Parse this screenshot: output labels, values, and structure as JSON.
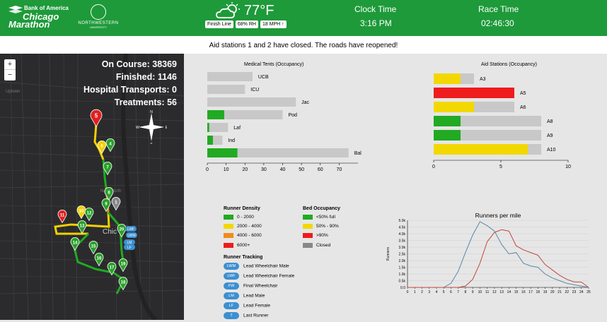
{
  "header": {
    "sponsor_line1": "Bank of America",
    "sponsor_line2": "Chicago",
    "sponsor_line3": "Marathon",
    "partner_line1": "NORTHWESTERN",
    "partner_line2": "UNIVERSITY",
    "temperature": "77°F",
    "weather_icon": "partly-cloudy-icon",
    "badges": [
      "Finish Line",
      "68% RH",
      "18 MPH ↑"
    ],
    "clock_label": "Clock Time",
    "clock_value": "3:16 PM",
    "race_label": "Race Time",
    "race_value": "02:46:30",
    "brand_color": "#1e9a3a"
  },
  "banner": "Aid stations 1 and 2 have closed. The roads have reopened!",
  "map": {
    "zoom_in": "+",
    "zoom_out": "−",
    "stats": [
      "On Course: 38369",
      "Finished: 1146",
      "Hospital Transports: 0",
      "Treatments: 56"
    ],
    "compass": {
      "n": "N",
      "s": "S",
      "e": "E",
      "w": "W"
    },
    "city_label": "Chic",
    "markers": [
      {
        "label": "5",
        "color": "#e02020"
      },
      {
        "label": "6",
        "color": "#f2d000"
      },
      {
        "label": "4",
        "color": "#2aa02a"
      },
      {
        "label": "7",
        "color": "#2aa02a"
      },
      {
        "label": "8",
        "color": "#2aa02a"
      },
      {
        "label": "1",
        "color": "#888888"
      },
      {
        "label": "9",
        "color": "#2aa02a"
      },
      {
        "label": "10",
        "color": "#f2d000"
      },
      {
        "label": "11",
        "color": "#e02020"
      },
      {
        "label": "12",
        "color": "#2aa02a"
      },
      {
        "label": "13",
        "color": "#2aa02a"
      },
      {
        "label": "14",
        "color": "#2aa02a"
      },
      {
        "label": "15",
        "color": "#2aa02a"
      },
      {
        "label": "16",
        "color": "#2aa02a"
      },
      {
        "label": "17",
        "color": "#2aa02a"
      },
      {
        "label": "18",
        "color": "#2aa02a"
      },
      {
        "label": "19",
        "color": "#2aa02a"
      },
      {
        "label": "20",
        "color": "#2aa02a"
      }
    ],
    "runners": [
      "LWF",
      "LWM",
      "LM",
      "LF"
    ]
  },
  "medical": {
    "title": "Medical Tents (Occupancy)",
    "rows": [
      {
        "name": "UCB",
        "value": 0,
        "capacity": 24
      },
      {
        "name": "ICU",
        "value": 0,
        "capacity": 20
      },
      {
        "name": "Jac",
        "value": 0,
        "capacity": 47
      },
      {
        "name": "Pod",
        "value": 9,
        "capacity": 40
      },
      {
        "name": "Laf",
        "value": 1,
        "capacity": 11
      },
      {
        "name": "Ind",
        "value": 3,
        "capacity": 8
      },
      {
        "name": "Bal",
        "value": 16,
        "capacity": 75
      }
    ],
    "ticks": [
      "0",
      "10",
      "20",
      "30",
      "40",
      "50",
      "60",
      "70"
    ],
    "max": 80
  },
  "aid": {
    "title": "Aid Stations (Occupancy)",
    "rows": [
      {
        "name": "A3",
        "value": 2,
        "capacity": 3,
        "color": "#f2d800"
      },
      {
        "name": "A5",
        "value": 6,
        "capacity": 6,
        "color": "#ee1c1c"
      },
      {
        "name": "A6",
        "value": 3,
        "capacity": 6,
        "color": "#f2d800"
      },
      {
        "name": "A8",
        "value": 2,
        "capacity": 8,
        "color": "#22aa22"
      },
      {
        "name": "A9",
        "value": 2,
        "capacity": 8,
        "color": "#22aa22"
      },
      {
        "name": "A10",
        "value": 7,
        "capacity": 8,
        "color": "#f2d800"
      }
    ],
    "ticks": [
      "0",
      "5",
      "10"
    ],
    "max": 10
  },
  "legend": {
    "density_title": "Runner Density",
    "density": [
      {
        "label": "0 - 2000",
        "color": "#22aa22"
      },
      {
        "label": "2000 - 4000",
        "color": "#f2d800"
      },
      {
        "label": "4000 - 6000",
        "color": "#f08c1a"
      },
      {
        "label": "6000+",
        "color": "#ee1c1c"
      }
    ],
    "bed_title": "Bed Occupancy",
    "bed": [
      {
        "label": "<50% full",
        "color": "#22aa22"
      },
      {
        "label": "50% - 90%",
        "color": "#f2d800"
      },
      {
        "label": ">90%",
        "color": "#ee1c1c"
      },
      {
        "label": "Closed",
        "color": "#888888"
      }
    ],
    "tracking_title": "Runner Tracking",
    "tracking": [
      {
        "code": "LWM",
        "label": "Lead Wheelchair Male"
      },
      {
        "code": "LWF",
        "label": "Lead Wheelchair Female"
      },
      {
        "code": "FW",
        "label": "Final Wheelchair"
      },
      {
        "code": "LM",
        "label": "Lead Male"
      },
      {
        "code": "LF",
        "label": "Lead Female"
      },
      {
        "code": "T",
        "label": "Last Runner"
      }
    ]
  },
  "chart_data": {
    "type": "line",
    "title": "Runners per mile",
    "ylabel": "Runners",
    "xlabel": "",
    "x": [
      0,
      1,
      2,
      3,
      4,
      5,
      6,
      7,
      8,
      9,
      10,
      11,
      12,
      13,
      14,
      15,
      16,
      17,
      18,
      19,
      20,
      21,
      22,
      23,
      24,
      25
    ],
    "ylim": [
      0,
      5000
    ],
    "yticks": [
      "0.0",
      "0.5k",
      "1.0k",
      "1.5k",
      "2.0k",
      "2.5k",
      "3.0k",
      "3.5k",
      "4.0k",
      "4.5k",
      "5.0k"
    ],
    "grid": true,
    "series": [
      {
        "color": "#5b86a8",
        "values": [
          0,
          0,
          0,
          0,
          0,
          0,
          300,
          1200,
          2600,
          3900,
          4900,
          4600,
          4200,
          3200,
          2500,
          2600,
          1800,
          1600,
          1500,
          1000,
          700,
          500,
          300,
          200,
          100,
          0
        ]
      },
      {
        "color": "#c0483f",
        "values": [
          0,
          0,
          0,
          0,
          0,
          0,
          0,
          0,
          100,
          600,
          1800,
          3400,
          4100,
          4300,
          4200,
          3100,
          2800,
          2600,
          2400,
          1700,
          1300,
          900,
          600,
          400,
          400,
          0
        ]
      }
    ]
  }
}
